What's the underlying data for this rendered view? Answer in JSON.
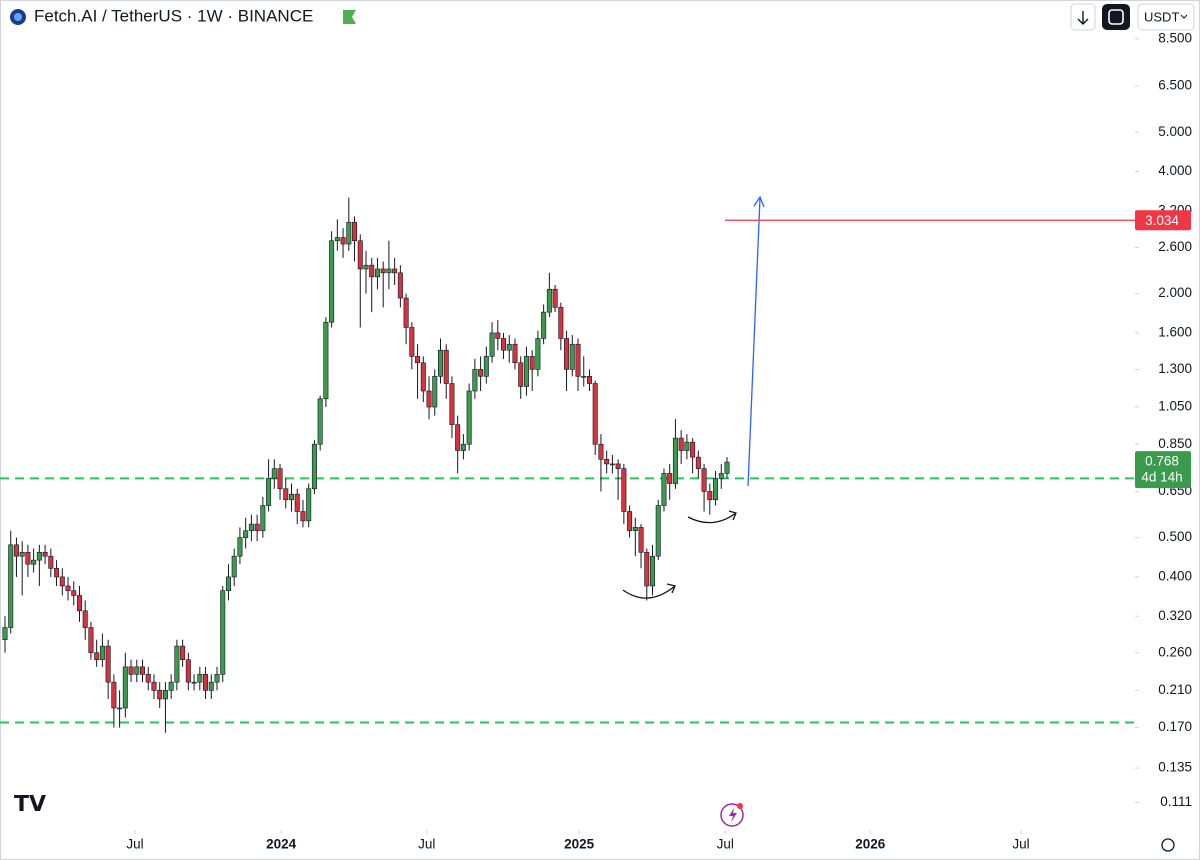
{
  "chart_data": {
    "type": "candlestick",
    "title": "Fetch.AI / TetherUS · 1W · BINANCE",
    "currency": "USDT",
    "up_color": "#3b9b4c",
    "down_color": "#d5333f",
    "log": true,
    "xlim": [
      -0.87,
      197.2
    ],
    "xticks": [
      {
        "value": 22.7,
        "label": "Jul"
      },
      {
        "value": 48.2,
        "label": "2024"
      },
      {
        "value": 73.6,
        "label": "Jul"
      },
      {
        "value": 100.2,
        "label": "2025"
      },
      {
        "value": 125.7,
        "label": "Jul"
      },
      {
        "value": 151,
        "label": "2026"
      },
      {
        "value": 177.3,
        "label": "Jul"
      }
    ],
    "ylim": [
      0.095,
      10.6
    ],
    "yticks": [
      {
        "value": 8.5,
        "label": "8.500"
      },
      {
        "value": 6.5,
        "label": "6.500"
      },
      {
        "value": 5,
        "label": "5.000"
      },
      {
        "value": 4,
        "label": "4.000"
      },
      {
        "value": 3.2,
        "label": "3.200"
      },
      {
        "value": 2.6,
        "label": "2.600"
      },
      {
        "value": 2,
        "label": "2.000"
      },
      {
        "value": 1.6,
        "label": "1.600"
      },
      {
        "value": 1.3,
        "label": "1.300"
      },
      {
        "value": 1.05,
        "label": "1.050"
      },
      {
        "value": 0.85,
        "label": "0.850"
      },
      {
        "value": 0.65,
        "label": "0.650"
      },
      {
        "value": 0.5,
        "label": "0.500"
      },
      {
        "value": 0.4,
        "label": "0.400"
      },
      {
        "value": 0.32,
        "label": "0.320"
      },
      {
        "value": 0.26,
        "label": "0.260"
      },
      {
        "value": 0.21,
        "label": "0.210"
      },
      {
        "value": 0.17,
        "label": "0.170"
      },
      0.135,
      0.111
    ],
    "open": [
      0.28,
      0.3,
      0.48,
      0.45,
      0.46,
      0.43,
      0.44,
      0.46,
      0.45,
      0.42,
      0.4,
      0.38,
      0.37,
      0.36,
      0.33,
      0.3,
      0.26,
      0.25,
      0.27,
      0.22,
      0.19,
      0.19,
      0.24,
      0.23,
      0.24,
      0.23,
      0.22,
      0.21,
      0.2,
      0.21,
      0.22,
      0.27,
      0.25,
      0.22,
      0.22,
      0.23,
      0.21,
      0.22,
      0.23,
      0.37,
      0.4,
      0.45,
      0.5,
      0.52,
      0.54,
      0.52,
      0.6,
      0.7,
      0.74,
      0.66,
      0.62,
      0.64,
      0.58,
      0.55,
      0.66,
      0.85,
      1.1,
      1.7,
      2.7,
      2.75,
      2.65,
      3.0,
      2.7,
      2.3,
      2.35,
      2.2,
      2.3,
      2.25,
      2.3,
      2.25,
      1.95,
      1.65,
      1.4,
      1.35,
      1.15,
      1.05,
      1.25,
      1.45,
      1.2,
      0.95,
      0.82,
      0.85,
      1.15,
      1.3,
      1.25,
      1.4,
      1.6,
      1.55,
      1.45,
      1.5,
      1.35,
      1.18,
      1.4,
      1.3,
      1.55,
      1.8,
      2.05,
      1.85,
      1.55,
      1.3,
      1.5,
      1.25,
      1.25,
      1.2,
      0.85,
      0.78,
      0.76,
      0.76,
      0.74,
      0.58,
      0.52,
      0.53,
      0.46,
      0.38,
      0.45,
      0.6,
      0.72,
      0.68,
      0.88,
      0.82,
      0.86,
      0.79,
      0.74,
      0.65,
      0.62,
      0.7,
      0.72
    ],
    "high": [
      0.32,
      0.52,
      0.5,
      0.49,
      0.48,
      0.47,
      0.48,
      0.48,
      0.47,
      0.44,
      0.42,
      0.4,
      0.39,
      0.38,
      0.35,
      0.31,
      0.28,
      0.29,
      0.28,
      0.23,
      0.21,
      0.26,
      0.25,
      0.25,
      0.25,
      0.24,
      0.23,
      0.22,
      0.22,
      0.23,
      0.28,
      0.28,
      0.26,
      0.23,
      0.24,
      0.24,
      0.23,
      0.24,
      0.38,
      0.43,
      0.47,
      0.53,
      0.56,
      0.57,
      0.57,
      0.63,
      0.78,
      0.78,
      0.76,
      0.7,
      0.68,
      0.66,
      0.62,
      0.68,
      0.87,
      1.12,
      1.75,
      2.85,
      3.05,
      2.9,
      3.45,
      3.1,
      2.8,
      2.55,
      2.45,
      2.45,
      2.4,
      2.7,
      2.45,
      2.35,
      2.0,
      1.7,
      1.5,
      1.4,
      1.25,
      1.3,
      1.55,
      1.5,
      1.25,
      1.0,
      0.9,
      1.2,
      1.38,
      1.4,
      1.48,
      1.7,
      1.72,
      1.6,
      1.58,
      1.55,
      1.4,
      1.48,
      1.45,
      1.62,
      1.88,
      2.25,
      2.1,
      1.9,
      1.62,
      1.58,
      1.55,
      1.4,
      1.3,
      1.22,
      0.9,
      0.82,
      0.8,
      0.78,
      0.76,
      0.6,
      0.56,
      0.54,
      0.47,
      0.48,
      0.62,
      0.74,
      0.76,
      0.98,
      0.92,
      0.9,
      0.88,
      0.82,
      0.76,
      0.68,
      0.73,
      0.76,
      0.79
    ],
    "low": [
      0.26,
      0.29,
      0.4,
      0.36,
      0.4,
      0.41,
      0.38,
      0.43,
      0.4,
      0.38,
      0.36,
      0.35,
      0.34,
      0.31,
      0.28,
      0.25,
      0.24,
      0.24,
      0.2,
      0.17,
      0.17,
      0.18,
      0.22,
      0.22,
      0.22,
      0.21,
      0.2,
      0.19,
      0.165,
      0.2,
      0.21,
      0.24,
      0.21,
      0.21,
      0.21,
      0.2,
      0.2,
      0.21,
      0.22,
      0.35,
      0.38,
      0.43,
      0.47,
      0.49,
      0.49,
      0.5,
      0.58,
      0.66,
      0.62,
      0.59,
      0.58,
      0.54,
      0.53,
      0.53,
      0.64,
      0.82,
      1.05,
      1.65,
      2.55,
      2.45,
      2.55,
      2.4,
      1.65,
      2.0,
      1.8,
      2.05,
      1.85,
      2.05,
      2.1,
      1.85,
      1.5,
      1.3,
      1.1,
      1.08,
      0.98,
      1.0,
      1.2,
      1.1,
      0.88,
      0.72,
      0.78,
      0.82,
      1.1,
      1.15,
      1.2,
      1.35,
      1.45,
      1.38,
      1.35,
      1.3,
      1.1,
      1.12,
      1.15,
      1.25,
      1.5,
      1.75,
      1.8,
      1.45,
      1.15,
      1.25,
      1.15,
      1.18,
      1.15,
      0.8,
      0.65,
      0.72,
      0.72,
      0.62,
      0.54,
      0.5,
      0.45,
      0.42,
      0.35,
      0.36,
      0.44,
      0.58,
      0.62,
      0.66,
      0.76,
      0.78,
      0.72,
      0.7,
      0.58,
      0.57,
      0.6,
      0.66,
      0.7
    ],
    "close": [
      0.3,
      0.48,
      0.45,
      0.46,
      0.43,
      0.44,
      0.46,
      0.45,
      0.42,
      0.4,
      0.38,
      0.37,
      0.36,
      0.33,
      0.3,
      0.26,
      0.25,
      0.27,
      0.22,
      0.19,
      0.19,
      0.24,
      0.23,
      0.24,
      0.23,
      0.22,
      0.21,
      0.2,
      0.21,
      0.22,
      0.27,
      0.25,
      0.22,
      0.22,
      0.23,
      0.21,
      0.22,
      0.23,
      0.37,
      0.4,
      0.45,
      0.5,
      0.52,
      0.54,
      0.52,
      0.6,
      0.7,
      0.74,
      0.66,
      0.62,
      0.64,
      0.58,
      0.55,
      0.66,
      0.85,
      1.1,
      1.7,
      2.7,
      2.75,
      2.65,
      3.0,
      2.7,
      2.3,
      2.35,
      2.2,
      2.3,
      2.25,
      2.3,
      2.25,
      1.95,
      1.65,
      1.4,
      1.35,
      1.15,
      1.05,
      1.25,
      1.45,
      1.2,
      0.95,
      0.82,
      0.85,
      1.15,
      1.3,
      1.25,
      1.4,
      1.6,
      1.55,
      1.45,
      1.5,
      1.35,
      1.18,
      1.4,
      1.3,
      1.55,
      1.8,
      2.05,
      1.85,
      1.55,
      1.3,
      1.5,
      1.25,
      1.25,
      1.2,
      0.85,
      0.78,
      0.76,
      0.76,
      0.74,
      0.58,
      0.52,
      0.53,
      0.46,
      0.38,
      0.45,
      0.6,
      0.72,
      0.68,
      0.88,
      0.82,
      0.86,
      0.79,
      0.74,
      0.65,
      0.62,
      0.7,
      0.72,
      0.768
    ],
    "levels": [
      {
        "value": 0.7,
        "color": "#22c55e"
      },
      {
        "value": 0.175,
        "color": "#22c55e"
      }
    ],
    "target": {
      "value": 3.034,
      "color": "#f23645"
    },
    "countdown": "4d 14h"
  }
}
